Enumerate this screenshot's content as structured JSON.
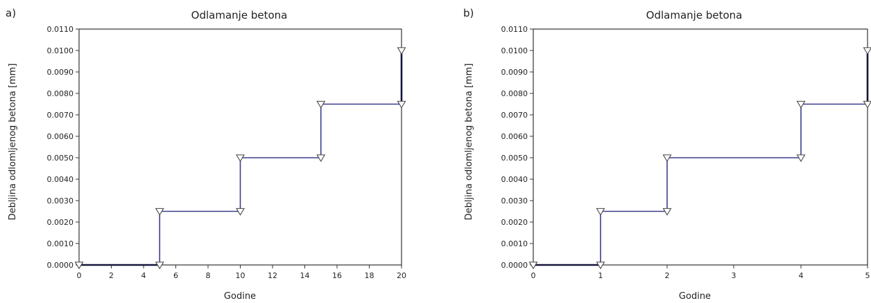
{
  "chart_data": [
    {
      "type": "line",
      "panel_label": "a)",
      "title": "Odlamanje betona",
      "xlabel": "Godine",
      "ylabel": "Debljina odlomljenog betona [mm]",
      "x_scale": "linear",
      "xlim": [
        0,
        20
      ],
      "ylim": [
        0,
        0.011
      ],
      "x_ticks": [
        0,
        2,
        4,
        6,
        8,
        10,
        12,
        14,
        16,
        18,
        20
      ],
      "x_tick_labels": [
        "0",
        "2",
        "4",
        "6",
        "8",
        "10",
        "12",
        "14",
        "16",
        "18",
        "20"
      ],
      "y_ticks": [
        0,
        0.001,
        0.002,
        0.003,
        0.004,
        0.005,
        0.006,
        0.007,
        0.008,
        0.009,
        0.01,
        0.011
      ],
      "y_tick_labels": [
        "0.0000",
        "0.0010",
        "0.0020",
        "0.0030",
        "0.0040",
        "0.0050",
        "0.0060",
        "0.0070",
        "0.0080",
        "0.0090",
        "0.0100",
        "0.0110"
      ],
      "grid": false,
      "legend": "none",
      "line_color": "#3a3d8c",
      "marker": "triangle-down",
      "series": [
        {
          "x": [
            0,
            5,
            5,
            10,
            10,
            15,
            15,
            20,
            20
          ],
          "y": [
            0,
            0,
            0.0025,
            0.0025,
            0.005,
            0.005,
            0.0075,
            0.0075,
            0.01
          ]
        }
      ]
    },
    {
      "type": "line",
      "panel_label": "b)",
      "title": "Odlamanje betona",
      "xlabel": "Godine",
      "ylabel": "Debljina odlomljenog betona [mm]",
      "x_scale": "categorical",
      "xlim": [
        0,
        5
      ],
      "ylim": [
        0,
        0.011
      ],
      "x_ticks": [
        0,
        1,
        2,
        3,
        4,
        5
      ],
      "x_tick_labels": [
        "0",
        "1",
        "2",
        "3",
        "4",
        "5"
      ],
      "y_ticks": [
        0,
        0.001,
        0.002,
        0.003,
        0.004,
        0.005,
        0.006,
        0.007,
        0.008,
        0.009,
        0.01,
        0.011
      ],
      "y_tick_labels": [
        "0.0000",
        "0.0010",
        "0.0020",
        "0.0030",
        "0.0040",
        "0.0050",
        "0.0060",
        "0.0070",
        "0.0080",
        "0.0090",
        "0.0100",
        "0.0110"
      ],
      "grid": false,
      "legend": "none",
      "line_color": "#3a3d8c",
      "marker": "triangle-down",
      "series": [
        {
          "x": [
            0,
            1,
            1,
            2,
            2,
            4,
            4,
            5,
            5
          ],
          "y": [
            0,
            0,
            0.0025,
            0.0025,
            0.005,
            0.005,
            0.0075,
            0.0075,
            0.01
          ]
        }
      ]
    }
  ]
}
